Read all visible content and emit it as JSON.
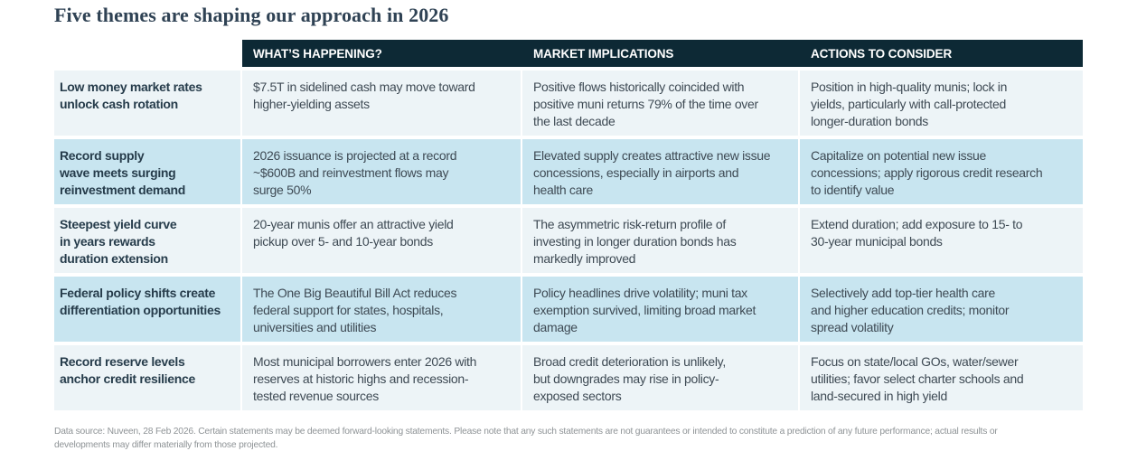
{
  "page": {
    "title": "Five themes are shaping our approach in 2026",
    "footnote": "Data source: Nuveen, 28 Feb 2026. Certain statements may be deemed forward-looking statements. Please note that any such statements are not guarantees or intended to constitute a prediction of any future performance; actual results or\ndevelopments may differ materially from those projected."
  },
  "colors": {
    "header_bg": "#0d2935",
    "row_light": "#edf4f7",
    "row_blue": "#c8e5f0",
    "title_text": "#2f4254",
    "theme_text": "#263c4b",
    "body_text": "#3e4a54",
    "footnote_text": "#8e9396"
  },
  "table": {
    "columns": [
      "WHAT’S HAPPENING?",
      "MARKET IMPLICATIONS",
      "ACTIONS TO CONSIDER"
    ],
    "rows": [
      {
        "theme": "Low money market rates\nunlock cash rotation",
        "whats_happening": "$7.5T in sidelined cash may move toward\nhigher-yielding assets",
        "market_implications": "Positive flows historically coincided with\npositive muni returns 79% of the time over\nthe last decade",
        "actions": "Position in high-quality munis; lock in\nyields, particularly with call-protected\nlonger-duration bonds"
      },
      {
        "theme": "Record supply\nwave meets surging\nreinvestment demand",
        "whats_happening": "2026 issuance is projected at a record\n~$600B and reinvestment flows may\nsurge 50%",
        "market_implications": "Elevated supply creates attractive new issue\nconcessions, especially in airports and\nhealth care",
        "actions": "Capitalize on potential new issue\nconcessions; apply rigorous credit research\nto identify value"
      },
      {
        "theme": "Steepest yield curve\nin years rewards\nduration extension",
        "whats_happening": "20-year munis offer an attractive yield\npickup over 5- and 10-year bonds",
        "market_implications": "The asymmetric risk-return profile of\ninvesting in longer duration bonds has\nmarkedly improved",
        "actions": "Extend duration; add exposure to 15- to\n30-year municipal bonds"
      },
      {
        "theme": "Federal policy shifts create\ndifferentiation opportunities",
        "whats_happening": "The One Big Beautiful Bill Act reduces\nfederal support for states, hospitals,\nuniversities and utilities",
        "market_implications": "Policy headlines drive volatility; muni tax\nexemption survived, limiting broad market\ndamage",
        "actions": "Selectively add top-tier health care\nand higher education credits; monitor\nspread volatility"
      },
      {
        "theme": "Record reserve levels\nanchor credit resilience",
        "whats_happening": "Most municipal borrowers enter 2026 with\nreserves at historic highs and recession-\ntested revenue sources",
        "market_implications": "Broad credit deterioration is unlikely,\nbut downgrades may rise in policy-\nexposed sectors",
        "actions": "Focus on state/local GOs, water/sewer\nutilities; favor select charter schools and\nland-secured in high yield"
      }
    ]
  }
}
